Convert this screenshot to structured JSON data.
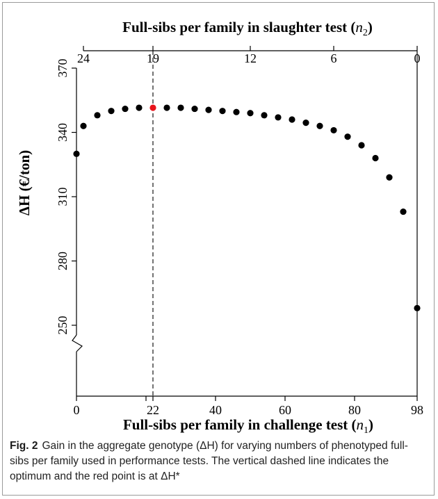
{
  "chart_data": {
    "type": "scatter",
    "xlabel_bottom": "Full-sibs per family in challenge test (n1)",
    "xlabel_bottom_parts": [
      "Full-sibs per family in challenge test (",
      "n",
      "1",
      ")"
    ],
    "xlabel_top": "Full-sibs per family in slaughter test (n2)",
    "xlabel_top_parts": [
      "Full-sibs per family in slaughter test (",
      "n",
      "2",
      ")"
    ],
    "ylabel": "ΔH (€/ton)",
    "xlim": [
      0,
      98
    ],
    "ylim_axis": [
      250,
      370
    ],
    "axis_break": "below 250",
    "x_ticks_bottom": [
      0,
      20,
      22,
      40,
      60,
      80,
      98
    ],
    "x_tick_labels_bottom": [
      "0",
      "",
      "22",
      "40",
      "60",
      "80",
      "98"
    ],
    "x_ticks_top_positions_n1": [
      2,
      22,
      50,
      74,
      98
    ],
    "x_tick_labels_top": [
      "24",
      "19",
      "12",
      "6",
      "0"
    ],
    "y_ticks": [
      250,
      280,
      310,
      340,
      370
    ],
    "y_tick_labels": [
      "250",
      "280",
      "310",
      "340",
      "370"
    ],
    "optimum_line_x": 22,
    "points": [
      {
        "x": 0,
        "y": 330
      },
      {
        "x": 2,
        "y": 343
      },
      {
        "x": 6,
        "y": 348
      },
      {
        "x": 10,
        "y": 350
      },
      {
        "x": 14,
        "y": 351
      },
      {
        "x": 18,
        "y": 351.5
      },
      {
        "x": 22,
        "y": 351.5,
        "highlight": true
      },
      {
        "x": 26,
        "y": 351.5
      },
      {
        "x": 30,
        "y": 351.5
      },
      {
        "x": 34,
        "y": 351
      },
      {
        "x": 38,
        "y": 350.5
      },
      {
        "x": 42,
        "y": 350
      },
      {
        "x": 46,
        "y": 349.5
      },
      {
        "x": 50,
        "y": 349
      },
      {
        "x": 54,
        "y": 348
      },
      {
        "x": 58,
        "y": 347
      },
      {
        "x": 62,
        "y": 346
      },
      {
        "x": 66,
        "y": 344.5
      },
      {
        "x": 70,
        "y": 343
      },
      {
        "x": 74,
        "y": 341
      },
      {
        "x": 78,
        "y": 338
      },
      {
        "x": 82,
        "y": 334
      },
      {
        "x": 86,
        "y": 328
      },
      {
        "x": 90,
        "y": 319
      },
      {
        "x": 94,
        "y": 303
      },
      {
        "x": 98,
        "y": 258
      }
    ],
    "point_color": "#000000",
    "highlight_color": "#e8141b",
    "grid": false,
    "legend": "none"
  },
  "caption": {
    "label": "Fig. 2",
    "text": "Gain in the aggregate genotype (ΔH) for varying numbers of phenotyped full-sibs per family used in performance tests. The vertical dashed line indicates the optimum and the red point is at ΔH*"
  }
}
